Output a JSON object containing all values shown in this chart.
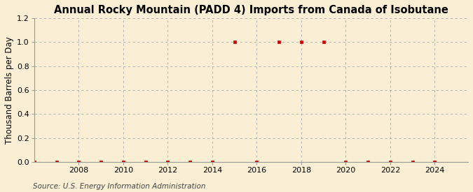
{
  "title": "Annual Rocky Mountain (PADD 4) Imports from Canada of Isobutane",
  "ylabel": "Thousand Barrels per Day",
  "source": "Source: U.S. Energy Information Administration",
  "bg_color": "#faefd4",
  "plot_bg_color": "#faefd4",
  "grid_color": "#aaaaaa",
  "marker_color": "#cc0000",
  "years": [
    2006,
    2007,
    2008,
    2009,
    2010,
    2011,
    2012,
    2013,
    2014,
    2015,
    2016,
    2017,
    2018,
    2019,
    2020,
    2021,
    2022,
    2023,
    2024
  ],
  "values": [
    0.0,
    0.0,
    0.0,
    0.0,
    0.0,
    0.0,
    0.0,
    0.0,
    0.0,
    1.0,
    0.0,
    1.0,
    1.0,
    1.0,
    0.0,
    0.0,
    0.0,
    0.0,
    0.0
  ],
  "xlim": [
    2006.0,
    2025.5
  ],
  "ylim": [
    0.0,
    1.2
  ],
  "yticks": [
    0.0,
    0.2,
    0.4,
    0.6,
    0.8,
    1.0,
    1.2
  ],
  "xticks": [
    2008,
    2010,
    2012,
    2014,
    2016,
    2018,
    2020,
    2022,
    2024
  ],
  "title_fontsize": 10.5,
  "axis_label_fontsize": 8.5,
  "tick_fontsize": 8,
  "source_fontsize": 7.5,
  "marker_size": 3.0
}
